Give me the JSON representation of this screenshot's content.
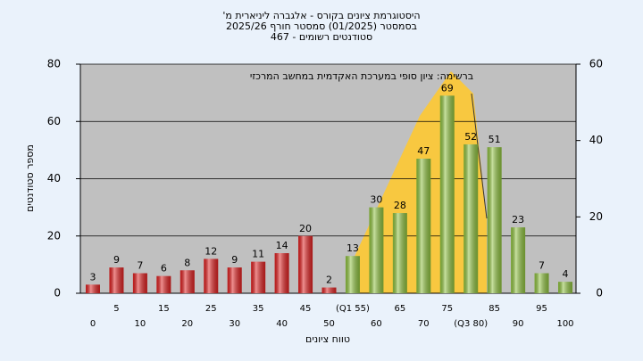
{
  "chart_data": {
    "type": "bar",
    "title": "היסטוגרמת ציונים בקורס - אלגברה ליניארית מ'",
    "subtitle": "בסמסטר  (01/2025)  סמסטר חורף 2025/26",
    "subtitle2": "סטודנטים רשומים - 467",
    "annotation": "ברשימה: ציון סופי במערכת האקדמית במחשב המרכזי",
    "xlabel": "טווח ציונים",
    "ylabel": "מספר סטודנטים",
    "categories": [
      "0",
      "5",
      "10",
      "15",
      "20",
      "25",
      "30",
      "35",
      "40",
      "45",
      "50",
      "(Q1 55)",
      "60",
      "65",
      "70",
      "75",
      "(Q3 80)",
      "85",
      "90",
      "95",
      "100"
    ],
    "values": [
      3,
      9,
      7,
      6,
      8,
      12,
      9,
      11,
      14,
      20,
      2,
      13,
      30,
      28,
      47,
      69,
      52,
      51,
      23,
      7,
      4
    ],
    "bar_colors": [
      "#e02020",
      "#e02020",
      "#e02020",
      "#e02020",
      "#e02020",
      "#e02020",
      "#e02020",
      "#e02020",
      "#e02020",
      "#e02020",
      "#e02020",
      "#8fc23f",
      "#8fc23f",
      "#8fc23f",
      "#8fc23f",
      "#8fc23f",
      "#8fc23f",
      "#8fc23f",
      "#8fc23f",
      "#8fc23f",
      "#8fc23f"
    ],
    "ylim": [
      0,
      80
    ],
    "yticks": [
      0,
      20,
      40,
      60,
      80
    ],
    "y2lim": [
      0,
      60
    ],
    "y2ticks": [
      0,
      20,
      40,
      60
    ],
    "grid": true
  }
}
